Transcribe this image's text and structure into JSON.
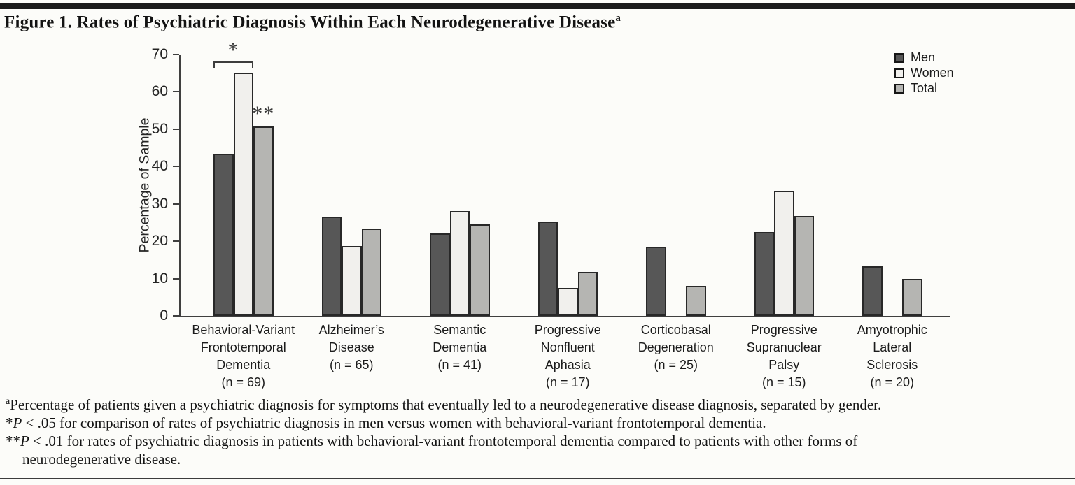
{
  "figure": {
    "title": "Figure 1. Rates of Psychiatric Diagnosis Within Each Neurodegenerative Disease",
    "title_superscript": "a"
  },
  "chart_data": {
    "type": "bar",
    "title": "Figure 1. Rates of Psychiatric Diagnosis Within Each Neurodegenerative Disease",
    "xlabel": "",
    "ylabel": "Percentage of Sample",
    "ylim": [
      0,
      70
    ],
    "yticks": [
      0,
      10,
      20,
      30,
      40,
      50,
      60,
      70
    ],
    "grid": false,
    "legend_position": "top-right",
    "categories": [
      "Behavioral-Variant Frontotemporal Dementia (n = 69)",
      "Alzheimer’s Disease (n = 65)",
      "Semantic Dementia (n = 41)",
      "Progressive Nonfluent Aphasia (n = 17)",
      "Corticobasal Degeneration (n = 25)",
      "Progressive Supranuclear Palsy (n = 15)",
      "Amyotrophic Lateral Sclerosis (n = 20)"
    ],
    "category_label_lines": [
      [
        "Behavioral-Variant",
        "Frontotemporal",
        "Dementia",
        "(n = 69)"
      ],
      [
        "Alzheimer’s",
        "Disease",
        "(n = 65)"
      ],
      [
        "Semantic",
        "Dementia",
        "(n = 41)"
      ],
      [
        "Progressive",
        "Nonfluent",
        "Aphasia",
        "(n = 17)"
      ],
      [
        "Corticobasal",
        "Degeneration",
        "(n = 25)"
      ],
      [
        "Progressive",
        "Supranuclear",
        "Palsy",
        "(n = 15)"
      ],
      [
        "Amyotrophic",
        "Lateral",
        "Sclerosis",
        "(n = 20)"
      ]
    ],
    "series": [
      {
        "name": "Men",
        "color": "#575757",
        "values": [
          43.5,
          26.5,
          22.0,
          25.2,
          18.5,
          22.5,
          13.3
        ]
      },
      {
        "name": "Women",
        "color": "#f1f0ed",
        "values": [
          65.2,
          18.8,
          28.0,
          7.5,
          0,
          33.5,
          0
        ]
      },
      {
        "name": "Total",
        "color": "#b5b5b2",
        "values": [
          50.7,
          23.4,
          24.6,
          11.8,
          8.0,
          26.7,
          9.9
        ]
      }
    ],
    "annotations": [
      {
        "type": "bracket",
        "label": "*",
        "group": 0,
        "from_series": 0,
        "to_series": 1
      },
      {
        "type": "star",
        "label": "**",
        "group": 0,
        "series": 2
      }
    ]
  },
  "footnotes": [
    {
      "indent": false,
      "segments": [
        {
          "t": "a",
          "sup": true
        },
        {
          "t": "Percentage of patients given a psychiatric diagnosis for symptoms that eventually led to a neurodegenerative disease diagnosis, separated by gender."
        }
      ]
    },
    {
      "indent": false,
      "segments": [
        {
          "t": "*"
        },
        {
          "t": "P",
          "italic": true
        },
        {
          "t": " < .05 for comparison of rates of psychiatric diagnosis in men versus women with behavioral-variant frontotemporal dementia."
        }
      ]
    },
    {
      "indent": false,
      "segments": [
        {
          "t": "**"
        },
        {
          "t": "P",
          "italic": true
        },
        {
          "t": " < .01 for rates of psychiatric diagnosis in patients with behavioral-variant frontotemporal dementia compared to patients with other forms of"
        }
      ]
    },
    {
      "indent": true,
      "segments": [
        {
          "t": "neurodegenerative disease."
        }
      ]
    }
  ]
}
